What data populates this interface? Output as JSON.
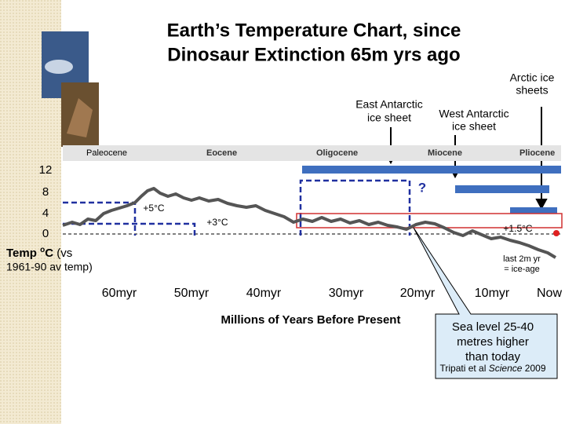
{
  "slide": {
    "title": [
      "Earth’s Temperature Chart, since",
      "Dinosaur Extinction 65m yrs ago"
    ],
    "ice_labels": {
      "arctic": [
        "Arctic ice",
        "sheets"
      ],
      "east": [
        "East Antarctic",
        "ice sheet"
      ],
      "west": [
        "West Antarctic",
        "ice sheet"
      ]
    },
    "epochs": [
      "Paleocene",
      "Eocene",
      "Oligocene",
      "Miocene",
      "Pliocene"
    ],
    "y_labels": [
      "12",
      "8",
      "4",
      "0"
    ],
    "y_title": {
      "temp": "Temp",
      "sup": "o",
      "unit": "C",
      "vs": "(vs",
      "base": "1961-90 av temp)"
    },
    "annotations": {
      "plus5": "+5°C",
      "plus3": "+3°C",
      "plus15": "+1.5°C",
      "question": "?",
      "ice_age": [
        "last 2m yr",
        "= ice-age"
      ]
    },
    "x_labels": [
      "60myr",
      "50myr",
      "40myr",
      "30myr",
      "20myr",
      "10myr",
      "Now"
    ],
    "x_title": "Millions of Years Before Present",
    "callout": {
      "lines": [
        "Sea level 25-40",
        "metres higher",
        "than today"
      ],
      "source": [
        "Tripati et al",
        "Science",
        "2009"
      ]
    }
  }
}
